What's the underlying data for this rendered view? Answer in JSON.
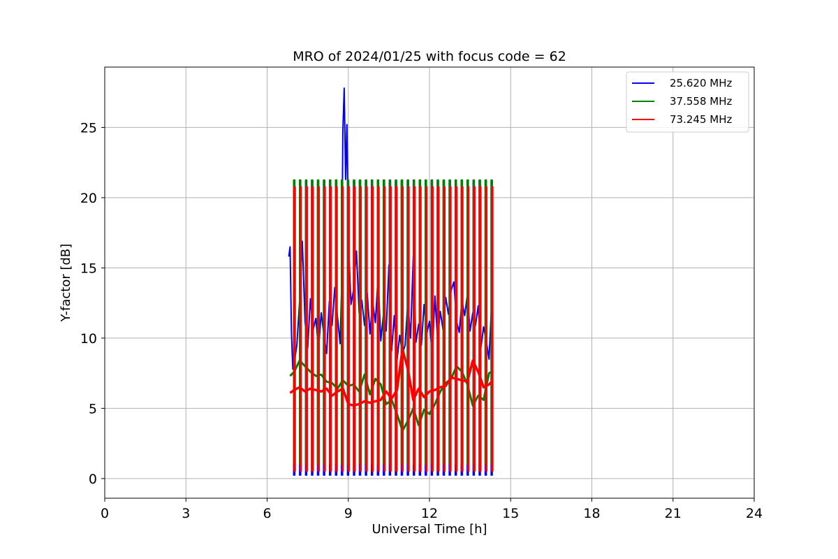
{
  "chart_data": {
    "type": "line",
    "title": "MRO of 2024/01/25 with focus code = 62",
    "xlabel": "Universal Time [h]",
    "ylabel": "Y-factor [dB]",
    "xlim": [
      0,
      24
    ],
    "ylim": [
      -1.4,
      29.3
    ],
    "x_ticks": [
      0,
      3,
      6,
      9,
      12,
      15,
      18,
      21,
      24
    ],
    "y_ticks": [
      0,
      5,
      10,
      15,
      20,
      25
    ],
    "grid": true,
    "legend_position": "top-right",
    "series": [
      {
        "name": "25.620 MHz",
        "color": "#0000ff",
        "x": [
          6.8,
          6.85,
          6.9,
          6.95,
          7.0,
          7.1,
          7.2,
          7.3,
          7.4,
          7.5,
          7.6,
          7.7,
          7.8,
          7.9,
          8.0,
          8.1,
          8.2,
          8.3,
          8.4,
          8.5,
          8.6,
          8.7,
          8.75,
          8.8,
          8.85,
          8.9,
          8.95,
          9.0,
          9.1,
          9.2,
          9.3,
          9.4,
          9.5,
          9.6,
          9.7,
          9.8,
          9.9,
          10.0,
          10.1,
          10.2,
          10.3,
          10.4,
          10.5,
          10.6,
          10.7,
          10.8,
          10.9,
          11.0,
          11.1,
          11.2,
          11.3,
          11.4,
          11.5,
          11.6,
          11.7,
          11.8,
          11.9,
          12.0,
          12.1,
          12.2,
          12.3,
          12.4,
          12.5,
          12.6,
          12.7,
          12.8,
          12.9,
          13.0,
          13.1,
          13.2,
          13.3,
          13.4,
          13.5,
          13.6,
          13.7,
          13.8,
          13.9,
          14.0,
          14.1,
          14.2,
          14.3
        ],
        "y": [
          15.8,
          16.5,
          10.3,
          7.8,
          8.2,
          9.5,
          12.6,
          16.9,
          11.2,
          9.3,
          12.8,
          10.6,
          11.4,
          9.2,
          11.8,
          10.2,
          8.9,
          12.6,
          10.9,
          13.6,
          11.5,
          9.6,
          13.4,
          24.8,
          27.8,
          21.3,
          25.2,
          17.0,
          12.4,
          13.5,
          16.2,
          11.8,
          12.7,
          10.9,
          13.2,
          10.3,
          12.6,
          11.1,
          14.4,
          9.8,
          11.7,
          10.5,
          15.2,
          9.1,
          11.6,
          8.4,
          10.2,
          8.9,
          9.5,
          12.6,
          10.0,
          15.8,
          9.7,
          11.0,
          9.5,
          12.4,
          10.3,
          11.2,
          8.8,
          13.0,
          9.9,
          11.9,
          10.6,
          12.9,
          11.7,
          13.4,
          14.0,
          11.2,
          10.4,
          12.7,
          11.6,
          13.1,
          10.5,
          11.8,
          10.9,
          12.3,
          9.3,
          10.8,
          9.8,
          8.5,
          12.6
        ]
      },
      {
        "name": "37.558 MHz",
        "color": "#008000",
        "x": [
          6.85,
          7.0,
          7.2,
          7.4,
          7.6,
          7.8,
          8.0,
          8.2,
          8.4,
          8.6,
          8.8,
          9.0,
          9.2,
          9.4,
          9.6,
          9.8,
          10.0,
          10.2,
          10.4,
          10.6,
          10.8,
          11.0,
          11.2,
          11.4,
          11.6,
          11.8,
          12.0,
          12.2,
          12.4,
          12.6,
          12.8,
          13.0,
          13.2,
          13.4,
          13.6,
          13.8,
          14.0,
          14.2,
          14.3
        ],
        "y": [
          7.3,
          7.6,
          8.4,
          8.0,
          7.6,
          7.3,
          7.4,
          6.9,
          6.8,
          6.4,
          7.0,
          6.6,
          6.7,
          6.2,
          7.4,
          6.0,
          7.1,
          6.7,
          5.3,
          5.6,
          4.6,
          3.4,
          4.1,
          5.0,
          3.8,
          4.9,
          4.6,
          5.3,
          6.2,
          6.8,
          7.1,
          8.0,
          7.6,
          6.7,
          5.2,
          5.9,
          5.6,
          7.5,
          7.6
        ]
      },
      {
        "name": "73.245 MHz",
        "color": "#ff0000",
        "x": [
          6.85,
          7.0,
          7.2,
          7.4,
          7.6,
          7.8,
          8.0,
          8.2,
          8.4,
          8.6,
          8.8,
          9.0,
          9.2,
          9.4,
          9.6,
          9.8,
          10.0,
          10.2,
          10.4,
          10.6,
          10.8,
          11.0,
          11.2,
          11.4,
          11.6,
          11.8,
          12.0,
          12.2,
          12.4,
          12.6,
          12.8,
          13.0,
          13.2,
          13.4,
          13.6,
          13.8,
          14.0,
          14.2,
          14.3
        ],
        "y": [
          6.1,
          6.3,
          6.5,
          6.2,
          6.4,
          6.3,
          6.2,
          6.4,
          5.9,
          6.2,
          6.4,
          5.3,
          5.2,
          5.3,
          5.5,
          5.4,
          5.5,
          5.6,
          6.2,
          5.7,
          6.3,
          9.2,
          7.8,
          5.6,
          6.4,
          5.8,
          6.2,
          6.3,
          6.5,
          6.6,
          7.2,
          7.1,
          7.0,
          6.9,
          8.4,
          7.6,
          6.5,
          6.7,
          6.9
        ]
      }
    ],
    "cycles": {
      "start": 7.0,
      "end": 14.3,
      "count": 34,
      "peak_values": {
        "25.620 MHz": 21.2,
        "37.558 MHz": 21.3,
        "73.245 MHz": 20.8
      },
      "trough_values": {
        "25.620 MHz": 0.2,
        "37.558 MHz": 1.0,
        "73.245 MHz": 0.5
      }
    }
  }
}
